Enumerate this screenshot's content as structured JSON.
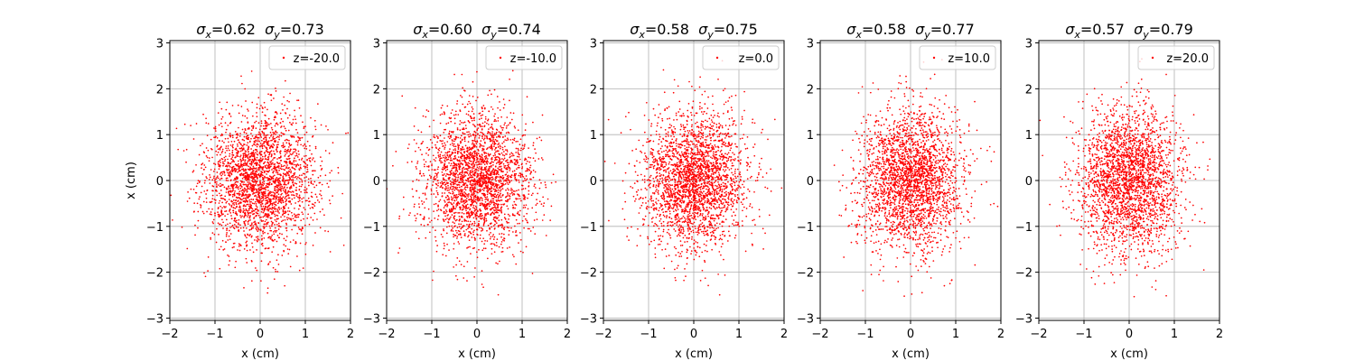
{
  "chart_data": [
    {
      "type": "scatter",
      "title": "σx=0.62  σy=0.73",
      "title_parts": {
        "sx_symbol": "σ",
        "sx_sub": "x",
        "sx_value": "=0.62",
        "sy_symbol": "σ",
        "sy_sub": "y",
        "sy_value": "=0.73"
      },
      "xlabel": "x (cm)",
      "ylabel": "x (cm)",
      "xlim": [
        -2,
        2
      ],
      "ylim": [
        -3.05,
        3.05
      ],
      "xticks": [
        -2,
        -1,
        0,
        1,
        2
      ],
      "yticks": [
        -3,
        -2,
        -1,
        0,
        1,
        2,
        3
      ],
      "x_tick_labels": [
        "−2",
        "−1",
        "0",
        "1",
        "2"
      ],
      "y_tick_labels": [
        "−3",
        "−2",
        "−1",
        "0",
        "1",
        "2",
        "3"
      ],
      "grid": true,
      "legend": {
        "position": "top-right",
        "label": "z=-20.0"
      },
      "series": [
        {
          "name": "z=-20.0",
          "sigma_x": 0.62,
          "sigma_y": 0.73,
          "mean_x": 0,
          "mean_y": 0,
          "color": "#ff0000",
          "marker": "point"
        }
      ]
    },
    {
      "type": "scatter",
      "title": "σx=0.60  σy=0.74",
      "title_parts": {
        "sx_symbol": "σ",
        "sx_sub": "x",
        "sx_value": "=0.60",
        "sy_symbol": "σ",
        "sy_sub": "y",
        "sy_value": "=0.74"
      },
      "xlabel": "x (cm)",
      "ylabel": "",
      "xlim": [
        -2,
        2
      ],
      "ylim": [
        -3.05,
        3.05
      ],
      "xticks": [
        -2,
        -1,
        0,
        1,
        2
      ],
      "yticks": [
        -3,
        -2,
        -1,
        0,
        1,
        2,
        3
      ],
      "x_tick_labels": [
        "−2",
        "−1",
        "0",
        "1",
        "2"
      ],
      "y_tick_labels": [
        "−3",
        "−2",
        "−1",
        "0",
        "1",
        "2",
        "3"
      ],
      "grid": true,
      "legend": {
        "position": "top-right",
        "label": "z=-10.0"
      },
      "series": [
        {
          "name": "z=-10.0",
          "sigma_x": 0.6,
          "sigma_y": 0.74,
          "mean_x": 0,
          "mean_y": 0,
          "color": "#ff0000",
          "marker": "point"
        }
      ]
    },
    {
      "type": "scatter",
      "title": "σx=0.58  σy=0.75",
      "title_parts": {
        "sx_symbol": "σ",
        "sx_sub": "x",
        "sx_value": "=0.58",
        "sy_symbol": "σ",
        "sy_sub": "y",
        "sy_value": "=0.75"
      },
      "xlabel": "x (cm)",
      "ylabel": "",
      "xlim": [
        -2,
        2
      ],
      "ylim": [
        -3.05,
        3.05
      ],
      "xticks": [
        -2,
        -1,
        0,
        1,
        2
      ],
      "yticks": [
        -3,
        -2,
        -1,
        0,
        1,
        2,
        3
      ],
      "x_tick_labels": [
        "−2",
        "−1",
        "0",
        "1",
        "2"
      ],
      "y_tick_labels": [
        "−3",
        "−2",
        "−1",
        "0",
        "1",
        "2",
        "3"
      ],
      "grid": true,
      "legend": {
        "position": "top-right",
        "label": "z=0.0"
      },
      "series": [
        {
          "name": "z=0.0",
          "sigma_x": 0.58,
          "sigma_y": 0.75,
          "mean_x": 0,
          "mean_y": 0,
          "color": "#ff0000",
          "marker": "point"
        }
      ]
    },
    {
      "type": "scatter",
      "title": "σx=0.58  σy=0.77",
      "title_parts": {
        "sx_symbol": "σ",
        "sx_sub": "x",
        "sx_value": "=0.58",
        "sy_symbol": "σ",
        "sy_sub": "y",
        "sy_value": "=0.77"
      },
      "xlabel": "x (cm)",
      "ylabel": "",
      "xlim": [
        -2,
        2
      ],
      "ylim": [
        -3.05,
        3.05
      ],
      "xticks": [
        -2,
        -1,
        0,
        1,
        2
      ],
      "yticks": [
        -3,
        -2,
        -1,
        0,
        1,
        2,
        3
      ],
      "x_tick_labels": [
        "−2",
        "−1",
        "0",
        "1",
        "2"
      ],
      "y_tick_labels": [
        "−3",
        "−2",
        "−1",
        "0",
        "1",
        "2",
        "3"
      ],
      "grid": true,
      "legend": {
        "position": "top-right",
        "label": "z=10.0"
      },
      "series": [
        {
          "name": "z=10.0",
          "sigma_x": 0.58,
          "sigma_y": 0.77,
          "mean_x": 0,
          "mean_y": 0,
          "color": "#ff0000",
          "marker": "point"
        }
      ]
    },
    {
      "type": "scatter",
      "title": "σx=0.57  σy=0.79",
      "title_parts": {
        "sx_symbol": "σ",
        "sx_sub": "x",
        "sx_value": "=0.57",
        "sy_symbol": "σ",
        "sy_sub": "y",
        "sy_value": "=0.79"
      },
      "xlabel": "x (cm)",
      "ylabel": "",
      "xlim": [
        -2,
        2
      ],
      "ylim": [
        -3.05,
        3.05
      ],
      "xticks": [
        -2,
        -1,
        0,
        1,
        2
      ],
      "yticks": [
        -3,
        -2,
        -1,
        0,
        1,
        2,
        3
      ],
      "x_tick_labels": [
        "−2",
        "−1",
        "0",
        "1",
        "2"
      ],
      "y_tick_labels": [
        "−3",
        "−2",
        "−1",
        "0",
        "1",
        "2",
        "3"
      ],
      "grid": true,
      "legend": {
        "position": "top-right",
        "label": "z=20.0"
      },
      "series": [
        {
          "name": "z=20.0",
          "sigma_x": 0.57,
          "sigma_y": 0.79,
          "mean_x": 0,
          "mean_y": 0,
          "color": "#ff0000",
          "marker": "point"
        }
      ]
    }
  ]
}
